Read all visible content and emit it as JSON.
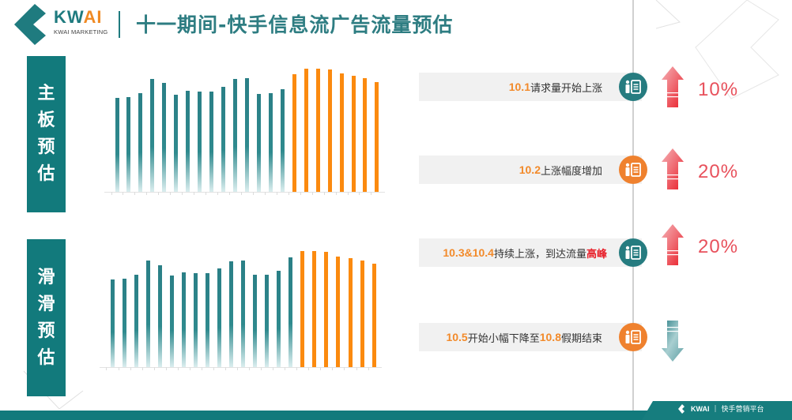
{
  "header": {
    "logo_text_main": "KW",
    "logo_text_accent": "AI",
    "logo_sub": "KWAI MARKETING",
    "title": "十一期间-快手信息流广告流量预估"
  },
  "sections": [
    {
      "label_chars": [
        "主",
        "板",
        "预",
        "估"
      ]
    },
    {
      "label_chars": [
        "滑",
        "滑",
        "预",
        "估"
      ]
    }
  ],
  "notes": [
    {
      "highlight": "10.1",
      "text": "请求量开始上涨",
      "badge_color": "teal",
      "arrow": "up",
      "pct": "10%"
    },
    {
      "highlight": "10.2",
      "text": "上涨幅度增加",
      "badge_color": "orange",
      "arrow": "up",
      "pct": "20%"
    },
    {
      "highlight": "10.3&10.4",
      "text": "持续上涨，到达流量",
      "emphasis": "高峰",
      "badge_color": "teal",
      "arrow": "up",
      "pct": "20%"
    },
    {
      "highlight": "10.5",
      "text": "开始小幅下降至",
      "highlight2": "10.8",
      "text2": "假期结束",
      "badge_color": "orange",
      "arrow": "down",
      "pct": ""
    }
  ],
  "footer": {
    "logo": "KWAI",
    "text": "快手营销平台"
  },
  "colors": {
    "teal": "#127a7c",
    "orange": "#fb8a0f",
    "red": "#e8202a",
    "pct": "#e8515c"
  },
  "chart_data": [
    {
      "type": "bar",
      "title": "主板预估",
      "categories": [
        "9/16/20",
        "9/17/20",
        "9/18/20",
        "9/19/20",
        "9/20/20",
        "9/21/20",
        "9/22/20",
        "9/23/20",
        "9/24/20",
        "9/25/20",
        "9/26/20",
        "9/27/20",
        "9/28/20",
        "9/29/20",
        "9/30/20",
        "10/1/20",
        "10/2/20",
        "10/3/20",
        "10/4/20",
        "10/5/20",
        "10/6/20",
        "10/7/20",
        "10/8/20"
      ],
      "values": [
        119,
        120,
        125,
        143,
        138,
        123,
        128,
        127,
        127,
        133,
        143,
        144,
        124,
        125,
        130,
        149,
        156,
        156,
        155,
        150,
        147,
        144,
        139
      ],
      "highlight_start_index": 15,
      "series_colors": {
        "pre_holiday": "#2a7f86",
        "holiday": "#fb8a0f"
      },
      "xlabel": "",
      "ylabel": "",
      "grid": false,
      "units": "relative bar height (px)"
    },
    {
      "type": "bar",
      "title": "滑滑预估",
      "categories": [
        "9/16/20",
        "9/17/20",
        "9/18/20",
        "9/19/20",
        "9/20/20",
        "9/21/20",
        "9/22/20",
        "9/23/20",
        "9/24/20",
        "9/25/20",
        "9/26/20",
        "9/27/20",
        "9/28/20",
        "9/29/20",
        "9/30/20",
        "10/1/20",
        "10/2/20",
        "10/3/20",
        "10/4/20",
        "10/5/20",
        "10/6/20",
        "10/7/20",
        "10/8/20"
      ],
      "values": [
        111,
        112,
        117,
        135,
        129,
        116,
        120,
        119,
        119,
        125,
        134,
        135,
        117,
        117,
        122,
        139,
        147,
        147,
        146,
        140,
        138,
        135,
        131
      ],
      "highlight_start_index": 16,
      "series_colors": {
        "pre_holiday": "#2a7f86",
        "holiday": "#fb8a0f"
      },
      "xlabel": "",
      "ylabel": "",
      "grid": false,
      "units": "relative bar height (px)"
    }
  ]
}
